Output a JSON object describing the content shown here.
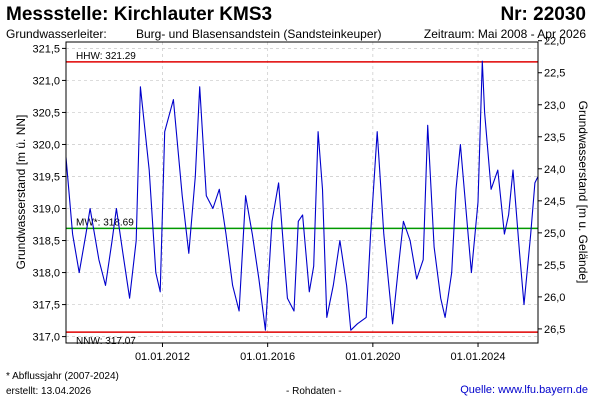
{
  "header": {
    "title": "Messstelle: Kirchlauter KMS3",
    "number": "Nr: 22030",
    "aquifer_label": "Grundwasserleiter:",
    "aquifer_value": "Burg- und Blasensandstein (Sandsteinkeuper)",
    "period": "Zeitraum: Mai 2008 - Apr 2026"
  },
  "footer": {
    "note": "* Abflussjahr (2007-2024)",
    "created": "erstellt:  13.04.2026",
    "raw_data": "- Rohdaten -",
    "source": "Quelle: www.lfu.bayern.de"
  },
  "colors": {
    "series": "#0000cc",
    "extreme_lines": "#e00000",
    "mean_line": "#009900",
    "grid": "#c8c8c8"
  },
  "chart_data": {
    "type": "line",
    "title": "",
    "xlabel": "",
    "ylabel": "Grundwasserstand [m ü. NN]",
    "ylabel_right": "Grundwasserstand [m u. Gelände]",
    "xlim": [
      "2008-05-01",
      "2026-04-13"
    ],
    "ylim": [
      316.9,
      321.6
    ],
    "ylim_right": [
      26.72,
      22.02
    ],
    "grid": true,
    "x_ticks": [
      "01.01.2012",
      "01.01.2016",
      "01.01.2020",
      "01.01.2024"
    ],
    "y_ticks": [
      "317,0",
      "317,5",
      "318,0",
      "318,5",
      "319,0",
      "319,5",
      "320,0",
      "320,5",
      "321,0",
      "321,5"
    ],
    "y_ticks_right": [
      "22,0",
      "22,5",
      "23,0",
      "23,5",
      "24,0",
      "24,5",
      "25,0",
      "25,5",
      "26,0",
      "26,5"
    ],
    "reference_lines": [
      {
        "label": "HHW: 321.29",
        "value": 321.29
      },
      {
        "label": "MW*: 318.69",
        "value": 318.69
      },
      {
        "label": "NNW: 317.07",
        "value": 317.07
      }
    ],
    "series": [
      {
        "x": [
          "2008-05-01",
          "2008-08-01",
          "2008-11-01",
          "2009-02-01",
          "2009-04-01",
          "2009-08-01",
          "2009-11-01",
          "2010-02-01",
          "2010-04-01",
          "2010-07-01",
          "2010-10-01",
          "2011-01-01",
          "2011-03-01",
          "2011-07-01",
          "2011-10-01",
          "2011-12-01",
          "2012-02-01",
          "2012-06-01",
          "2012-10-01",
          "2013-01-01",
          "2013-04-01",
          "2013-06-01",
          "2013-09-01",
          "2013-12-01",
          "2014-03-01",
          "2014-06-01",
          "2014-09-01",
          "2014-12-01",
          "2015-03-01",
          "2015-06-01",
          "2015-09-01",
          "2015-12-01",
          "2016-03-01",
          "2016-06-01",
          "2016-10-01",
          "2017-01-01",
          "2017-03-01",
          "2017-05-01",
          "2017-08-01",
          "2017-10-01",
          "2017-12-01",
          "2018-02-01",
          "2018-04-01",
          "2018-07-01",
          "2018-10-01",
          "2019-01-01",
          "2019-03-01",
          "2019-06-01",
          "2019-10-01",
          "2019-12-01",
          "2020-03-01",
          "2020-06-01",
          "2020-10-01",
          "2021-01-01",
          "2021-03-01",
          "2021-06-01",
          "2021-09-01",
          "2021-12-01",
          "2022-02-01",
          "2022-05-01",
          "2022-08-01",
          "2022-10-01",
          "2023-01-01",
          "2023-03-01",
          "2023-05-01",
          "2023-08-01",
          "2023-10-01",
          "2024-01-01",
          "2024-03-01",
          "2024-04-01",
          "2024-07-01",
          "2024-10-01",
          "2025-01-01",
          "2025-03-01",
          "2025-05-01",
          "2025-08-01",
          "2025-10-01",
          "2026-01-01",
          "2026-03-01",
          "2026-04-13"
        ],
        "values": [
          319.8,
          318.6,
          318.0,
          318.6,
          319.0,
          318.2,
          317.8,
          318.5,
          319.0,
          318.3,
          317.6,
          318.5,
          320.9,
          319.6,
          318.0,
          317.7,
          320.2,
          320.7,
          319.2,
          318.3,
          319.5,
          320.9,
          319.2,
          319.0,
          319.3,
          318.6,
          317.8,
          317.4,
          319.2,
          318.6,
          317.9,
          317.1,
          318.8,
          319.4,
          317.6,
          317.4,
          318.8,
          318.9,
          317.7,
          318.1,
          320.2,
          319.3,
          317.3,
          317.8,
          318.5,
          317.8,
          317.1,
          317.2,
          317.3,
          318.6,
          320.2,
          318.6,
          317.2,
          318.2,
          318.8,
          318.5,
          317.9,
          318.2,
          320.3,
          318.4,
          317.6,
          317.3,
          318.0,
          319.3,
          320.0,
          318.8,
          318.0,
          319.1,
          321.3,
          320.5,
          319.3,
          319.6,
          318.6,
          318.9,
          319.6,
          318.3,
          317.5,
          318.6,
          319.4,
          319.5
        ]
      }
    ]
  }
}
